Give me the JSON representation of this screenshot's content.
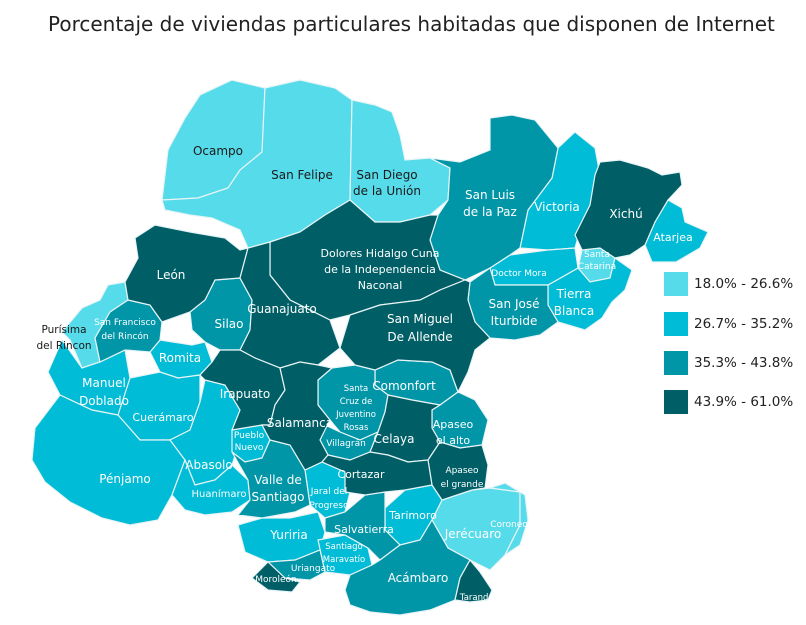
{
  "title": "Porcentaje de viviendas particulares habitadas que disponen de Internet",
  "colors": {
    "c1": "#55dbea",
    "c2": "#00bcd6",
    "c3": "#0096a8",
    "c4": "#005f66",
    "border": "#e8f4f6"
  },
  "legend": [
    {
      "label": "18.0% - 26.6%",
      "color": "#55dbea"
    },
    {
      "label": "26.7% - 35.2%",
      "color": "#00bcd6"
    },
    {
      "label": "35.3% - 43.8%",
      "color": "#0096a8"
    },
    {
      "label": "43.9% - 61.0%",
      "color": "#005f66"
    }
  ],
  "municipalities": [
    {
      "id": "ocampo",
      "lines": [
        "Ocampo"
      ],
      "class": "18.0% - 26.6%"
    },
    {
      "id": "san-felipe",
      "lines": [
        "San Felipe"
      ],
      "class": "18.0% - 26.6%"
    },
    {
      "id": "san-diego",
      "lines": [
        "San Diego",
        "de la Unión"
      ],
      "class": "18.0% - 26.6%"
    },
    {
      "id": "san-luis",
      "lines": [
        "San Luis",
        "de la Paz"
      ],
      "class": "35.3% - 43.8%"
    },
    {
      "id": "victoria",
      "lines": [
        "Victoria"
      ],
      "class": "26.7% - 35.2%"
    },
    {
      "id": "xichu",
      "lines": [
        "Xichú"
      ],
      "class": "43.9% - 61.0%"
    },
    {
      "id": "atarjea",
      "lines": [
        "Atarjea"
      ],
      "class": "26.7% - 35.2%"
    },
    {
      "id": "santa-catarina",
      "lines": [
        "Santa",
        "Catarina"
      ],
      "class": "18.0% - 26.6%"
    },
    {
      "id": "tierra-blanca",
      "lines": [
        "Tierra",
        "Blanca"
      ],
      "class": "26.7% - 35.2%"
    },
    {
      "id": "doctor-mora",
      "lines": [
        "Doctor Mora"
      ],
      "class": "26.7% - 35.2%"
    },
    {
      "id": "san-jose-iturbide",
      "lines": [
        "San José",
        "Iturbide"
      ],
      "class": "35.3% - 43.8%"
    },
    {
      "id": "dolores",
      "lines": [
        "Dolores Hidalgo Cuna",
        "de la Independencia",
        "Naconal"
      ],
      "class": "43.9% - 61.0%"
    },
    {
      "id": "san-miguel",
      "lines": [
        "San Miguel",
        "De Allende"
      ],
      "class": "43.9% - 61.0%"
    },
    {
      "id": "leon",
      "lines": [
        "León"
      ],
      "class": "43.9% - 61.0%"
    },
    {
      "id": "guanajuato",
      "lines": [
        "Guanajuato"
      ],
      "class": "43.9% - 61.0%"
    },
    {
      "id": "silao",
      "lines": [
        "Silao"
      ],
      "class": "35.3% - 43.8%"
    },
    {
      "id": "purisima",
      "lines": [
        "Purísima",
        "del Rincon"
      ],
      "class": "18.0% - 26.6%"
    },
    {
      "id": "san-francisco",
      "lines": [
        "San Francisco",
        "del Rincón"
      ],
      "class": "35.3% - 43.8%"
    },
    {
      "id": "romita",
      "lines": [
        "Romita"
      ],
      "class": "26.7% - 35.2%"
    },
    {
      "id": "manuel-doblado",
      "lines": [
        "Manuel",
        "Doblado"
      ],
      "class": "26.7% - 35.2%"
    },
    {
      "id": "cueramaro",
      "lines": [
        "Cuerámaro"
      ],
      "class": "26.7% - 35.2%"
    },
    {
      "id": "irapuato",
      "lines": [
        "Irapuato"
      ],
      "class": "43.9% - 61.0%"
    },
    {
      "id": "salamanca",
      "lines": [
        "Salamanca"
      ],
      "class": "43.9% - 61.0%"
    },
    {
      "id": "santa-cruz",
      "lines": [
        "Santa",
        "Cruz de",
        "Juventino",
        "Rosas"
      ],
      "class": "35.3% - 43.8%"
    },
    {
      "id": "comonfort",
      "lines": [
        "Comonfort"
      ],
      "class": "35.3% - 43.8%"
    },
    {
      "id": "villagran",
      "lines": [
        "Villagrán"
      ],
      "class": "35.3% - 43.8%"
    },
    {
      "id": "celaya",
      "lines": [
        "Celaya"
      ],
      "class": "43.9% - 61.0%"
    },
    {
      "id": "apaseo-alto",
      "lines": [
        "Apaseo",
        "el alto"
      ],
      "class": "35.3% - 43.8%"
    },
    {
      "id": "apaseo-grande",
      "lines": [
        "Apaseo",
        "el grande"
      ],
      "class": "43.9% - 61.0%"
    },
    {
      "id": "cortazar",
      "lines": [
        "Cortazar"
      ],
      "class": "43.9% - 61.0%"
    },
    {
      "id": "penjamo",
      "lines": [
        "Pénjamo"
      ],
      "class": "26.7% - 35.2%"
    },
    {
      "id": "abasolo",
      "lines": [
        "Abasolo"
      ],
      "class": "26.7% - 35.2%"
    },
    {
      "id": "pueblo-nuevo",
      "lines": [
        "Pueblo",
        "Nuevo"
      ],
      "class": "26.7% - 35.2%"
    },
    {
      "id": "huanimaro",
      "lines": [
        "Huanímaro"
      ],
      "class": "26.7% - 35.2%"
    },
    {
      "id": "valle-santiago",
      "lines": [
        "Valle de",
        "Santiago"
      ],
      "class": "35.3% - 43.8%"
    },
    {
      "id": "jaral",
      "lines": [
        "Jaral del",
        "Progreso"
      ],
      "class": "26.7% - 35.2%"
    },
    {
      "id": "yuriria",
      "lines": [
        "Yuriria"
      ],
      "class": "26.7% - 35.2%"
    },
    {
      "id": "santiago-maravatio",
      "lines": [
        "Santiago",
        "Maravatío"
      ],
      "class": "26.7% - 35.2%"
    },
    {
      "id": "salvatierra",
      "lines": [
        "Salvatierra"
      ],
      "class": "35.3% - 43.8%"
    },
    {
      "id": "tarimoro",
      "lines": [
        "Tarimoro"
      ],
      "class": "26.7% - 35.2%"
    },
    {
      "id": "jerecuaro",
      "lines": [
        "Jerécuaro"
      ],
      "class": "18.0% - 26.6%"
    },
    {
      "id": "coroneo",
      "lines": [
        "Coroneo"
      ],
      "class": "18.0% - 26.6%"
    },
    {
      "id": "uriangato",
      "lines": [
        "Uriangato"
      ],
      "class": "35.3% - 43.8%"
    },
    {
      "id": "moroleon",
      "lines": [
        "Moroleón"
      ],
      "class": "43.9% - 61.0%"
    },
    {
      "id": "acambaro",
      "lines": [
        "Acámbaro"
      ],
      "class": "35.3% - 43.8%"
    },
    {
      "id": "tarandacuao",
      "lines": [
        "Tarandacuao"
      ],
      "class": "43.9% - 61.0%"
    }
  ]
}
